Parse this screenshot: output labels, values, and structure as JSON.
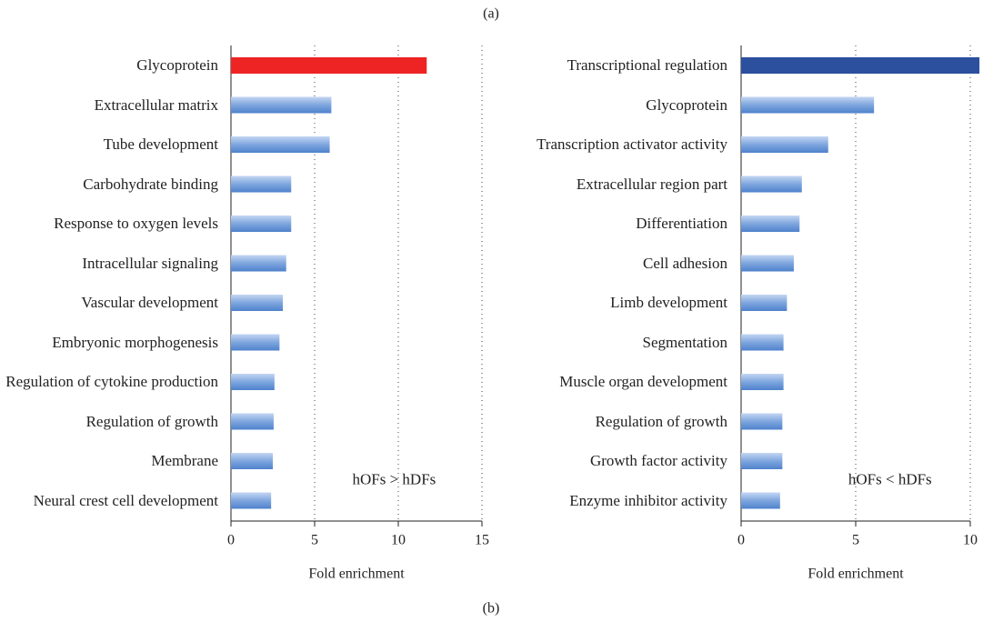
{
  "panel_labels": [
    "(a)",
    "(b)"
  ],
  "chart_data": [
    {
      "type": "barh",
      "categories": [
        "Glycoprotein",
        "Extracellular matrix",
        "Tube development",
        "Carbohydrate binding",
        "Response to oxygen levels",
        "Intracellular signaling",
        "Vascular development",
        "Embryonic morphogenesis",
        "Regulation of cytokine production",
        "Regulation of growth",
        "Membrane",
        "Neural crest cell development"
      ],
      "values": [
        11.7,
        6.0,
        5.9,
        3.6,
        3.6,
        3.3,
        3.1,
        2.9,
        2.6,
        2.55,
        2.5,
        2.4
      ],
      "colors": [
        "#ee2424",
        "#6f9bd8",
        "#6f9bd8",
        "#6f9bd8",
        "#6f9bd8",
        "#6f9bd8",
        "#6f9bd8",
        "#6f9bd8",
        "#6f9bd8",
        "#6f9bd8",
        "#6f9bd8",
        "#6f9bd8"
      ],
      "xlim": [
        0,
        15
      ],
      "xticks": [
        0,
        5,
        10,
        15
      ],
      "grid": true,
      "xlabel": "Fold enrichment",
      "annotation": {
        "text": "hOFs > hDFs",
        "color": "#ee2424"
      }
    },
    {
      "type": "barh",
      "categories": [
        "Transcriptional regulation",
        "Glycoprotein",
        "Transcription activator activity",
        "Extracellular region part",
        "Differentiation",
        "Cell adhesion",
        "Limb development",
        "Segmentation",
        "Muscle organ development",
        "Regulation of growth",
        "Growth factor activity",
        "Enzyme inhibitor activity"
      ],
      "values": [
        10.4,
        5.8,
        3.8,
        2.65,
        2.55,
        2.3,
        2.0,
        1.85,
        1.85,
        1.8,
        1.8,
        1.7
      ],
      "colors": [
        "#2c4f9e",
        "#6f9bd8",
        "#6f9bd8",
        "#6f9bd8",
        "#6f9bd8",
        "#6f9bd8",
        "#6f9bd8",
        "#6f9bd8",
        "#6f9bd8",
        "#6f9bd8",
        "#6f9bd8",
        "#6f9bd8"
      ],
      "xlim": [
        0,
        10
      ],
      "xticks": [
        0,
        5,
        10
      ],
      "grid": true,
      "xlabel": "Fold enrichment",
      "annotation": {
        "text": "hOFs < hDFs",
        "color": "#3b5aa8"
      }
    }
  ]
}
